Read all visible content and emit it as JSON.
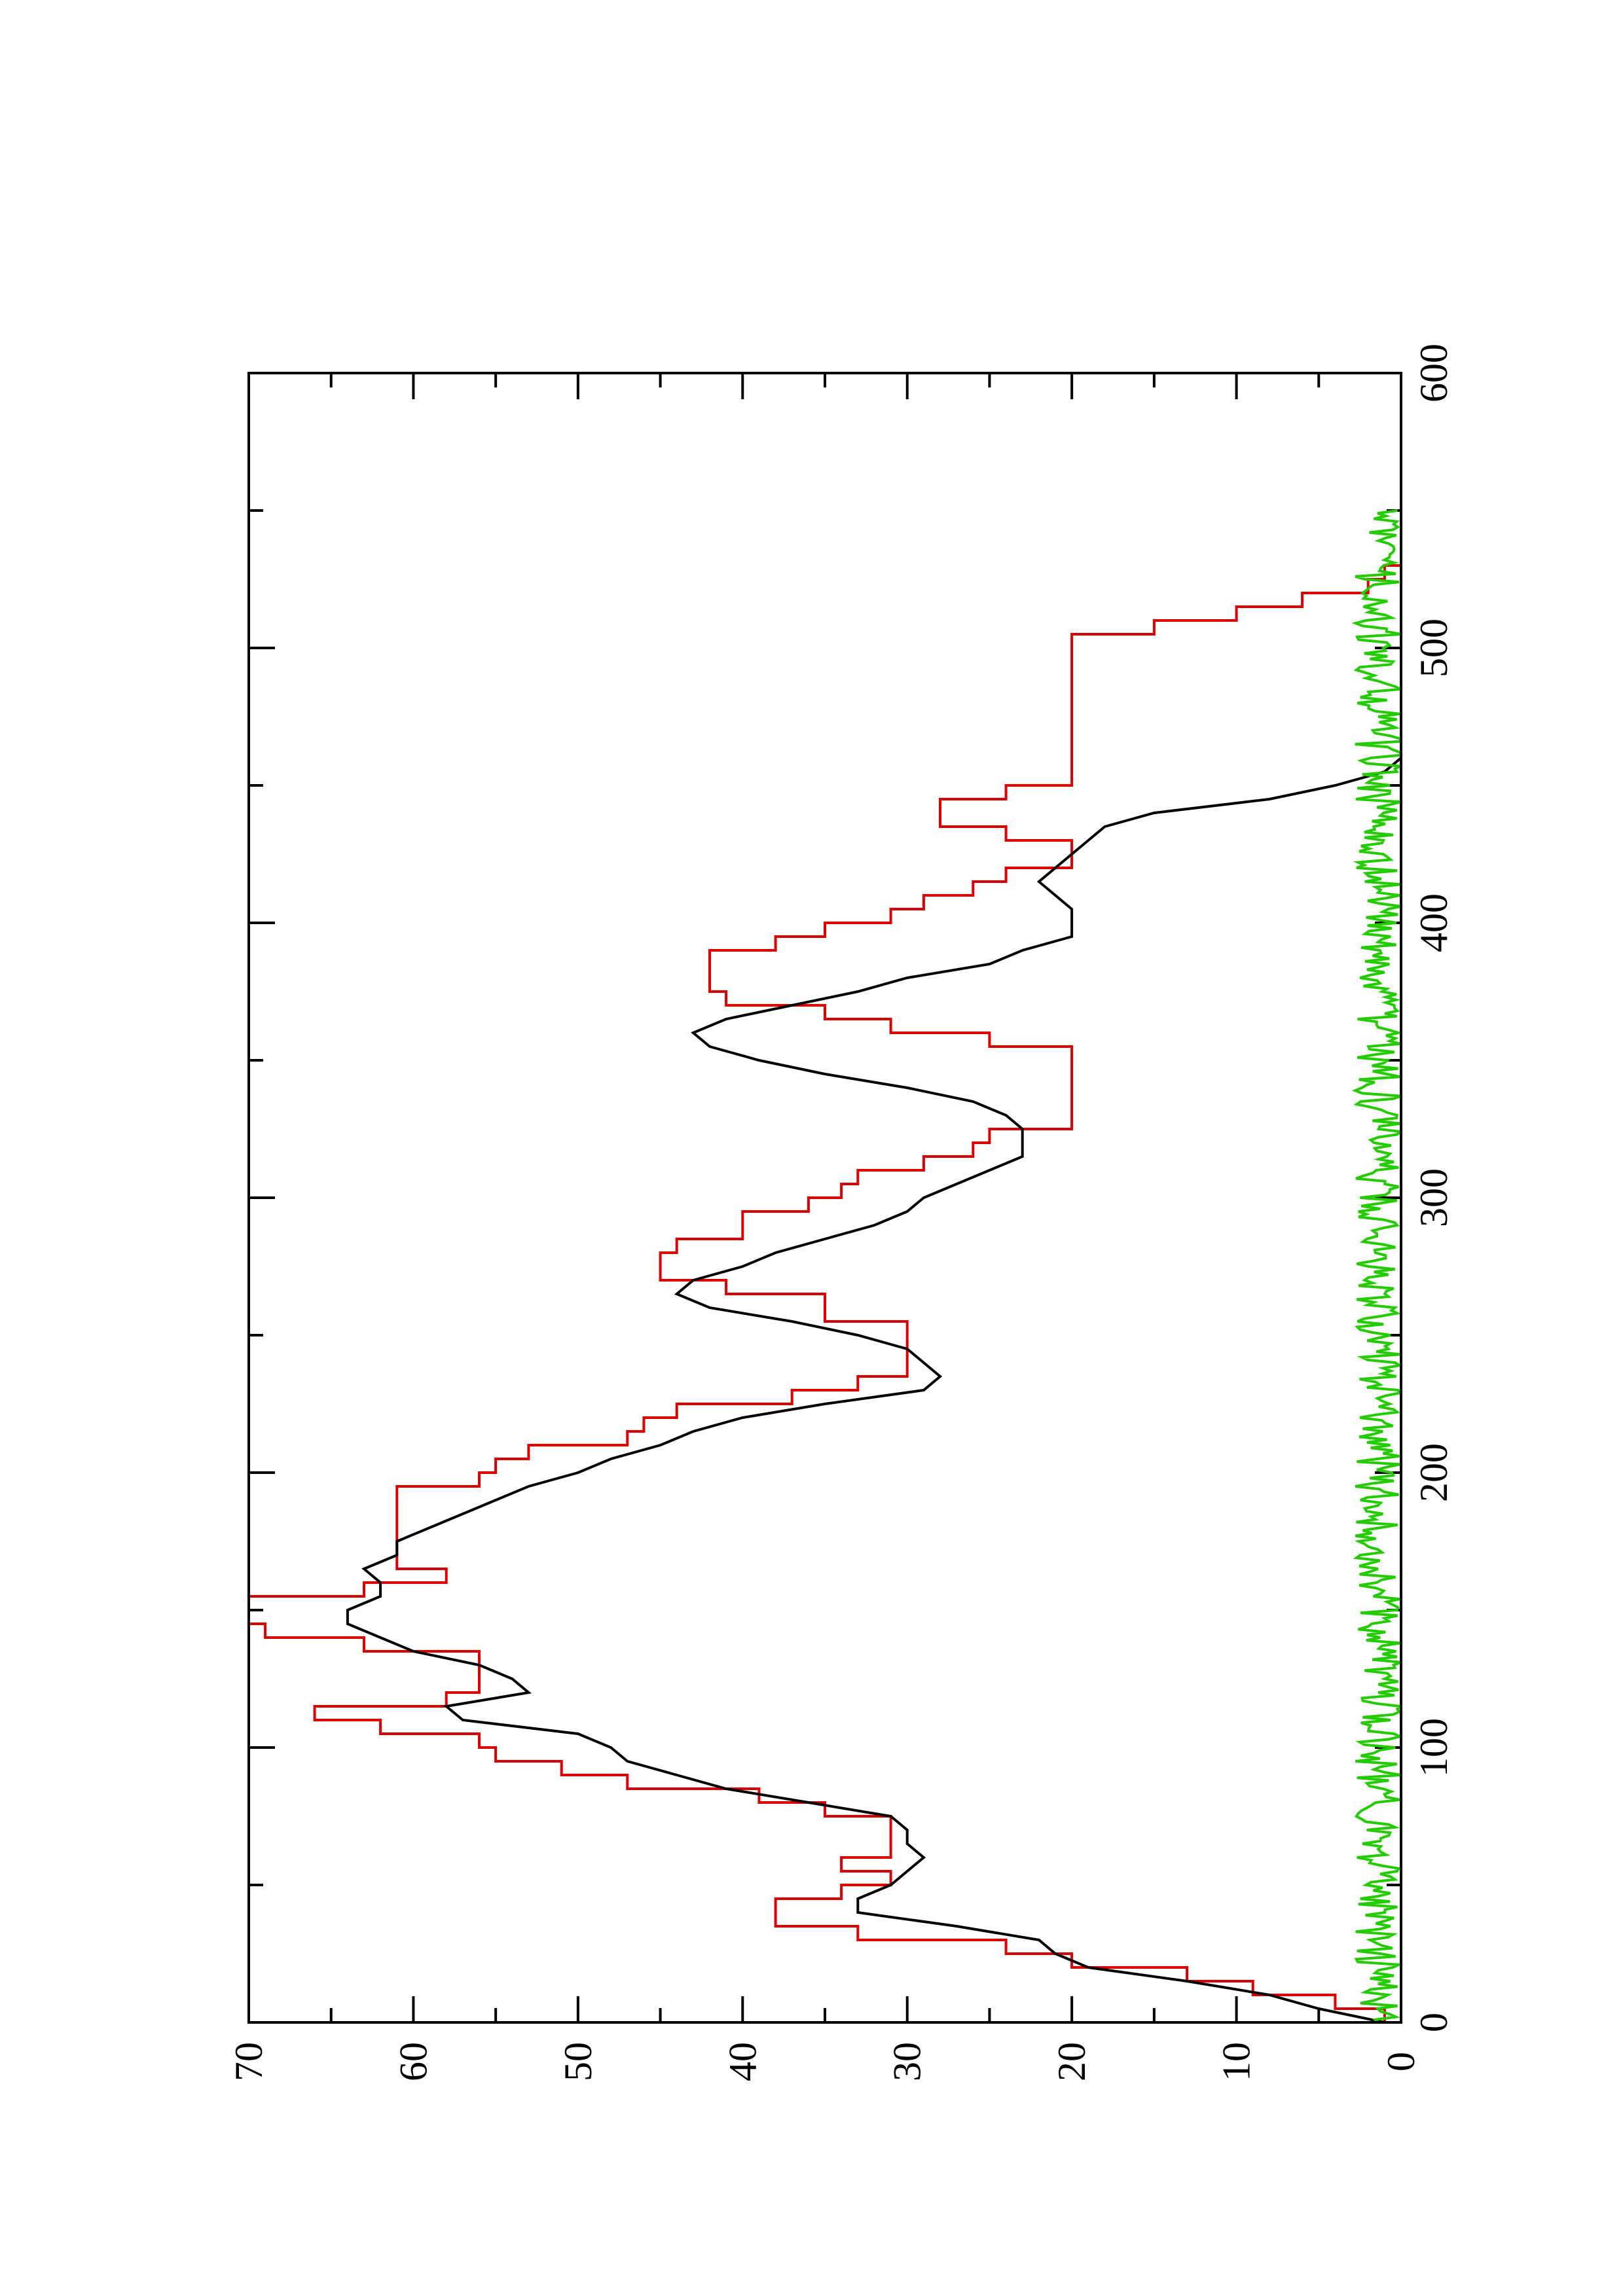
{
  "chart_data": {
    "type": "line",
    "title": "",
    "xlabel": "",
    "ylabel": "",
    "orientation": "rotated 90 degrees counter-clockwise (x axis runs bottom-to-top along the right side, y axis runs right-to-left)",
    "xlim": [
      0,
      600
    ],
    "ylim": [
      0,
      70
    ],
    "x_ticks": [
      "0",
      "100",
      "200",
      "300",
      "400",
      "500",
      "600"
    ],
    "y_ticks": [
      "0",
      "10",
      "20",
      "30",
      "40",
      "50",
      "60",
      "70"
    ],
    "x_minor_ticks": [
      50,
      150,
      250,
      350,
      450,
      550
    ],
    "y_minor_ticks": [
      5,
      15,
      25,
      35,
      45,
      55,
      65
    ],
    "grid": false,
    "legend": "none",
    "series": [
      {
        "color": "#dd0000",
        "style": "stepped",
        "x": [
          0,
          5,
          10,
          15,
          20,
          25,
          30,
          35,
          40,
          45,
          50,
          55,
          60,
          65,
          70,
          75,
          80,
          85,
          90,
          95,
          100,
          105,
          110,
          115,
          120,
          125,
          130,
          135,
          140,
          145,
          150,
          155,
          160,
          165,
          170,
          175,
          180,
          185,
          190,
          195,
          200,
          205,
          210,
          215,
          220,
          225,
          230,
          235,
          240,
          245,
          250,
          255,
          260,
          265,
          270,
          275,
          280,
          285,
          290,
          295,
          300,
          305,
          310,
          315,
          320,
          325,
          330,
          335,
          340,
          345,
          350,
          355,
          360,
          365,
          370,
          375,
          380,
          385,
          390,
          395,
          400,
          405,
          410,
          415,
          420,
          425,
          430,
          435,
          440,
          445,
          450,
          455,
          460,
          465,
          470,
          475,
          480,
          485,
          490,
          495,
          500,
          505,
          510,
          515,
          520,
          525,
          530,
          535,
          540,
          545,
          550,
          555
        ],
        "y": [
          1,
          4,
          9,
          13,
          20,
          24,
          33,
          38,
          38,
          34,
          31,
          34,
          31,
          31,
          31,
          35,
          39,
          47,
          51,
          55,
          56,
          62,
          66,
          58,
          56,
          56,
          56,
          63,
          69,
          72,
          72,
          63,
          58,
          61,
          61,
          61,
          61,
          61,
          61,
          56,
          55,
          53,
          47,
          46,
          44,
          37,
          33,
          30,
          30,
          30,
          30,
          35,
          35,
          41,
          45,
          45,
          44,
          40,
          40,
          36,
          34,
          33,
          29,
          26,
          25,
          20,
          20,
          20,
          20,
          20,
          20,
          25,
          31,
          35,
          41,
          42,
          42,
          42,
          38,
          35,
          31,
          29,
          26,
          24,
          20,
          20,
          24,
          28,
          28,
          24,
          20,
          20,
          20,
          20,
          20,
          20,
          20,
          20,
          20,
          20,
          20,
          15,
          10,
          6,
          2,
          1,
          0,
          0,
          0,
          0,
          0,
          0
        ]
      },
      {
        "color": "#000000",
        "style": "line",
        "x": [
          0,
          5,
          10,
          15,
          20,
          25,
          30,
          35,
          40,
          45,
          50,
          55,
          60,
          65,
          70,
          75,
          80,
          85,
          90,
          95,
          100,
          105,
          110,
          115,
          120,
          125,
          130,
          135,
          140,
          145,
          150,
          155,
          160,
          165,
          170,
          175,
          180,
          185,
          190,
          195,
          200,
          205,
          210,
          215,
          220,
          225,
          230,
          235,
          240,
          245,
          250,
          255,
          260,
          265,
          270,
          275,
          280,
          285,
          290,
          295,
          300,
          305,
          310,
          315,
          320,
          325,
          330,
          335,
          340,
          345,
          350,
          355,
          360,
          365,
          370,
          375,
          380,
          385,
          390,
          395,
          400,
          405,
          410,
          415,
          420,
          425,
          430,
          435,
          440,
          445,
          450,
          455,
          460,
          465,
          470,
          475,
          480,
          485,
          490,
          495,
          500,
          505,
          510,
          515,
          520,
          525,
          530,
          535,
          540,
          545,
          550
        ],
        "y": [
          1,
          5,
          8,
          13,
          19,
          21,
          22,
          27,
          33,
          33,
          31,
          30,
          29,
          30,
          30,
          31,
          36,
          41,
          44,
          47,
          48,
          50,
          57,
          58,
          53,
          54,
          56,
          60,
          62,
          64,
          64,
          62,
          62,
          63,
          61,
          61,
          59,
          57,
          55,
          53,
          50,
          48,
          45,
          43,
          40,
          35,
          29,
          28,
          29,
          30,
          33,
          37,
          42,
          44,
          43,
          40,
          38,
          35,
          32,
          30,
          29,
          27,
          25,
          23,
          23,
          23,
          24,
          26,
          30,
          35,
          39,
          42,
          43,
          41,
          37,
          33,
          30,
          25,
          23,
          20,
          20,
          20,
          21,
          22,
          21,
          20,
          19,
          18,
          15,
          8,
          4,
          1,
          0,
          0,
          0,
          0,
          0,
          0,
          0,
          0,
          0,
          0,
          0,
          0,
          0,
          0,
          0,
          0,
          0,
          0,
          0
        ]
      },
      {
        "color": "#22cc00",
        "style": "noise",
        "x_start": 0,
        "x_end": 550,
        "y_min": 0,
        "y_max": 2.8
      }
    ]
  }
}
